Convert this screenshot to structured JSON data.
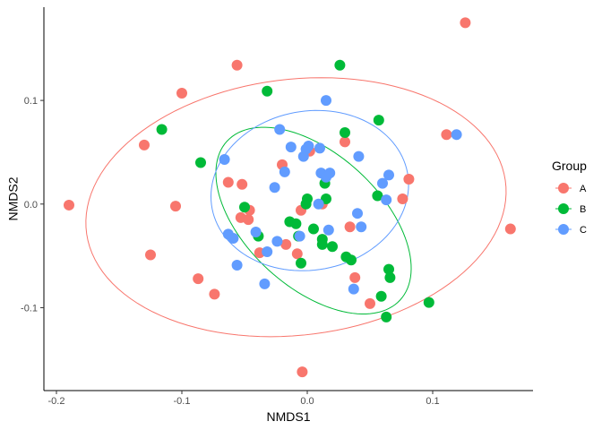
{
  "chart_data": {
    "type": "scatter",
    "title": "",
    "xlabel": "NMDS1",
    "ylabel": "NMDS2",
    "xlim": [
      -0.21,
      0.18
    ],
    "ylim": [
      -0.18,
      0.19
    ],
    "xticks": [
      {
        "value": -0.2,
        "label": "-0.2"
      },
      {
        "value": -0.1,
        "label": "-0.1"
      },
      {
        "value": 0.0,
        "label": "0.0"
      },
      {
        "value": 0.1,
        "label": "0.1"
      }
    ],
    "yticks": [
      {
        "value": -0.1,
        "label": "-0.1"
      },
      {
        "value": 0.0,
        "label": "0.0"
      },
      {
        "value": 0.1,
        "label": "0.1"
      }
    ],
    "grid": false,
    "legend": {
      "title": "Group",
      "position": "right"
    },
    "series": [
      {
        "name": "A",
        "color": "#F8766D",
        "points": [
          [
            -0.19,
            -0.001
          ],
          [
            -0.13,
            0.057
          ],
          [
            -0.125,
            -0.049
          ],
          [
            -0.105,
            -0.002
          ],
          [
            -0.1,
            0.107
          ],
          [
            -0.087,
            -0.072
          ],
          [
            -0.074,
            -0.087
          ],
          [
            -0.063,
            0.021
          ],
          [
            -0.056,
            0.134
          ],
          [
            -0.053,
            -0.013
          ],
          [
            -0.052,
            0.019
          ],
          [
            -0.047,
            -0.015
          ],
          [
            -0.046,
            -0.006
          ],
          [
            -0.038,
            -0.047
          ],
          [
            -0.02,
            0.038
          ],
          [
            -0.017,
            -0.039
          ],
          [
            -0.008,
            -0.048
          ],
          [
            -0.005,
            -0.006
          ],
          [
            -0.004,
            -0.162
          ],
          [
            0.002,
            0.051
          ],
          [
            0.012,
            0.0
          ],
          [
            0.03,
            0.06
          ],
          [
            0.034,
            -0.022
          ],
          [
            0.038,
            -0.071
          ],
          [
            0.05,
            -0.096
          ],
          [
            0.076,
            0.005
          ],
          [
            0.081,
            0.024
          ],
          [
            0.111,
            0.067
          ],
          [
            0.126,
            0.175
          ],
          [
            0.162,
            -0.024
          ]
        ]
      },
      {
        "name": "B",
        "color": "#00BA38",
        "points": [
          [
            -0.116,
            0.072
          ],
          [
            -0.085,
            0.04
          ],
          [
            -0.05,
            -0.003
          ],
          [
            -0.039,
            -0.031
          ],
          [
            -0.032,
            0.109
          ],
          [
            -0.014,
            -0.017
          ],
          [
            -0.009,
            -0.019
          ],
          [
            -0.007,
            -0.031
          ],
          [
            -0.005,
            -0.057
          ],
          [
            -0.001,
            0.0
          ],
          [
            0.0,
            0.005
          ],
          [
            0.005,
            -0.024
          ],
          [
            0.012,
            -0.034
          ],
          [
            0.012,
            -0.039
          ],
          [
            0.014,
            0.02
          ],
          [
            0.015,
            0.005
          ],
          [
            0.02,
            -0.041
          ],
          [
            0.026,
            0.134
          ],
          [
            0.03,
            0.069
          ],
          [
            0.031,
            -0.051
          ],
          [
            0.035,
            -0.054
          ],
          [
            0.056,
            0.008
          ],
          [
            0.057,
            0.081
          ],
          [
            0.059,
            -0.089
          ],
          [
            0.063,
            -0.109
          ],
          [
            0.065,
            -0.063
          ],
          [
            0.066,
            -0.071
          ],
          [
            0.097,
            -0.095
          ]
        ]
      },
      {
        "name": "C",
        "color": "#619CFF",
        "points": [
          [
            -0.066,
            0.043
          ],
          [
            -0.063,
            -0.029
          ],
          [
            -0.059,
            -0.033
          ],
          [
            -0.056,
            -0.059
          ],
          [
            -0.041,
            -0.027
          ],
          [
            -0.032,
            -0.046
          ],
          [
            -0.034,
            -0.077
          ],
          [
            -0.026,
            0.016
          ],
          [
            -0.024,
            -0.036
          ],
          [
            -0.022,
            0.072
          ],
          [
            -0.018,
            0.031
          ],
          [
            -0.013,
            0.055
          ],
          [
            -0.006,
            -0.031
          ],
          [
            -0.003,
            0.046
          ],
          [
            -0.001,
            0.053
          ],
          [
            0.001,
            0.056
          ],
          [
            0.009,
            0.0
          ],
          [
            0.01,
            0.054
          ],
          [
            0.011,
            0.03
          ],
          [
            0.015,
            0.026
          ],
          [
            0.015,
            0.1
          ],
          [
            0.018,
            0.03
          ],
          [
            0.017,
            -0.025
          ],
          [
            0.037,
            -0.082
          ],
          [
            0.04,
            -0.009
          ],
          [
            0.041,
            0.046
          ],
          [
            0.043,
            -0.022
          ],
          [
            0.06,
            0.02
          ],
          [
            0.063,
            0.004
          ],
          [
            0.065,
            0.028
          ],
          [
            0.119,
            0.067
          ]
        ]
      }
    ],
    "ellipses": [
      {
        "group": "A",
        "color": "#F8766D",
        "center": [
          -0.009,
          -0.003
        ],
        "rx": 0.169,
        "ry": 0.123,
        "angle_deg": 11
      },
      {
        "group": "B",
        "color": "#00BA38",
        "center": [
          0.005,
          -0.016
        ],
        "rx": 0.104,
        "ry": 0.058,
        "angle_deg": -53
      },
      {
        "group": "C",
        "color": "#619CFF",
        "center": [
          0.002,
          0.013
        ],
        "rx": 0.081,
        "ry": 0.075,
        "angle_deg": 38
      }
    ]
  }
}
